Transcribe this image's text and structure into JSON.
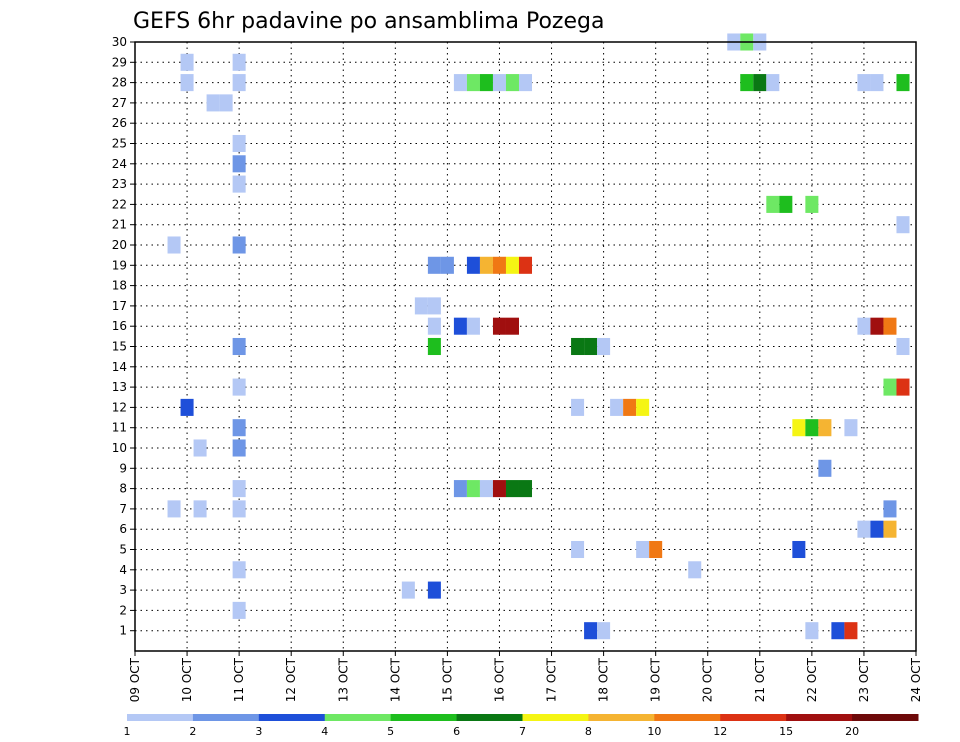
{
  "chart_data": {
    "type": "heatmap",
    "title": "GEFS 6hr padavine po ansamblima Pozega",
    "xlabel": "",
    "ylabel": "",
    "x_tick_labels": [
      "09 OCT",
      "10 OCT",
      "11 OCT",
      "12 OCT",
      "13 OCT",
      "14 OCT",
      "15 OCT",
      "16 OCT",
      "17 OCT",
      "18 OCT",
      "19 OCT",
      "20 OCT",
      "21 OCT",
      "22 OCT",
      "23 OCT",
      "24 OCT"
    ],
    "x_range_days": [
      0,
      15
    ],
    "y_tick_labels": [
      "1",
      "2",
      "3",
      "4",
      "5",
      "6",
      "7",
      "8",
      "9",
      "10",
      "11",
      "12",
      "13",
      "14",
      "15",
      "16",
      "17",
      "18",
      "19",
      "20",
      "21",
      "22",
      "23",
      "24",
      "25",
      "26",
      "27",
      "28",
      "29",
      "30"
    ],
    "y_range": [
      0,
      30
    ],
    "grid": true,
    "legend": {
      "placement": "bottom",
      "levels": [
        "1",
        "2",
        "3",
        "4",
        "5",
        "6",
        "7",
        "8",
        "10",
        "12",
        "15",
        "20"
      ],
      "colors": [
        "#b4c8f5",
        "#6e96e6",
        "#1e4fd9",
        "#6ee864",
        "#1ebe1e",
        "#0a7814",
        "#f5f514",
        "#f5b432",
        "#f07814",
        "#dc3214",
        "#a00f0f",
        "#6e0a0a"
      ]
    },
    "cell_width_days": 0.25,
    "cells": [
      {
        "m": 30,
        "t": 11.5,
        "c": 0
      },
      {
        "m": 30,
        "t": 11.75,
        "c": 3
      },
      {
        "m": 30,
        "t": 12.0,
        "c": 0
      },
      {
        "m": 29,
        "t": 1.0,
        "c": 0
      },
      {
        "m": 29,
        "t": 2.0,
        "c": 0
      },
      {
        "m": 28,
        "t": 1.0,
        "c": 0
      },
      {
        "m": 28,
        "t": 2.0,
        "c": 0
      },
      {
        "m": 28,
        "t": 6.25,
        "c": 0
      },
      {
        "m": 28,
        "t": 6.5,
        "c": 3
      },
      {
        "m": 28,
        "t": 6.75,
        "c": 4
      },
      {
        "m": 28,
        "t": 7.0,
        "c": 0
      },
      {
        "m": 28,
        "t": 7.25,
        "c": 3
      },
      {
        "m": 28,
        "t": 7.5,
        "c": 0
      },
      {
        "m": 28,
        "t": 11.75,
        "c": 4
      },
      {
        "m": 28,
        "t": 12.0,
        "c": 5
      },
      {
        "m": 28,
        "t": 12.25,
        "c": 0
      },
      {
        "m": 28,
        "t": 14.0,
        "c": 0
      },
      {
        "m": 28,
        "t": 14.25,
        "c": 0
      },
      {
        "m": 28,
        "t": 14.75,
        "c": 4
      },
      {
        "m": 27,
        "t": 1.5,
        "c": 0
      },
      {
        "m": 27,
        "t": 1.75,
        "c": 0
      },
      {
        "m": 25,
        "t": 2.0,
        "c": 0
      },
      {
        "m": 24,
        "t": 2.0,
        "c": 1
      },
      {
        "m": 23,
        "t": 2.0,
        "c": 0
      },
      {
        "m": 22,
        "t": 12.25,
        "c": 3
      },
      {
        "m": 22,
        "t": 12.5,
        "c": 4
      },
      {
        "m": 22,
        "t": 13.0,
        "c": 3
      },
      {
        "m": 21,
        "t": 14.75,
        "c": 0
      },
      {
        "m": 20,
        "t": 0.75,
        "c": 0
      },
      {
        "m": 20,
        "t": 2.0,
        "c": 1
      },
      {
        "m": 19,
        "t": 5.75,
        "c": 1
      },
      {
        "m": 19,
        "t": 6.0,
        "c": 1
      },
      {
        "m": 19,
        "t": 6.5,
        "c": 2
      },
      {
        "m": 19,
        "t": 6.75,
        "c": 7
      },
      {
        "m": 19,
        "t": 7.0,
        "c": 8
      },
      {
        "m": 19,
        "t": 7.25,
        "c": 6
      },
      {
        "m": 19,
        "t": 7.5,
        "c": 9
      },
      {
        "m": 17,
        "t": 5.5,
        "c": 0
      },
      {
        "m": 17,
        "t": 5.75,
        "c": 0
      },
      {
        "m": 16,
        "t": 5.75,
        "c": 0
      },
      {
        "m": 16,
        "t": 6.25,
        "c": 2
      },
      {
        "m": 16,
        "t": 6.5,
        "c": 0
      },
      {
        "m": 16,
        "t": 7.0,
        "c": 10
      },
      {
        "m": 16,
        "t": 7.25,
        "c": 10
      },
      {
        "m": 16,
        "t": 14.0,
        "c": 0
      },
      {
        "m": 16,
        "t": 14.25,
        "c": 10
      },
      {
        "m": 16,
        "t": 14.5,
        "c": 8
      },
      {
        "m": 15,
        "t": 2.0,
        "c": 1
      },
      {
        "m": 15,
        "t": 5.75,
        "c": 4
      },
      {
        "m": 15,
        "t": 8.5,
        "c": 5
      },
      {
        "m": 15,
        "t": 8.75,
        "c": 5
      },
      {
        "m": 15,
        "t": 9.0,
        "c": 0
      },
      {
        "m": 15,
        "t": 14.75,
        "c": 0
      },
      {
        "m": 13,
        "t": 2.0,
        "c": 0
      },
      {
        "m": 13,
        "t": 14.5,
        "c": 3
      },
      {
        "m": 13,
        "t": 14.75,
        "c": 9
      },
      {
        "m": 12,
        "t": 1.0,
        "c": 2
      },
      {
        "m": 12,
        "t": 8.5,
        "c": 0
      },
      {
        "m": 12,
        "t": 9.25,
        "c": 0
      },
      {
        "m": 12,
        "t": 9.5,
        "c": 8
      },
      {
        "m": 12,
        "t": 9.75,
        "c": 6
      },
      {
        "m": 11,
        "t": 2.0,
        "c": 1
      },
      {
        "m": 11,
        "t": 12.75,
        "c": 6
      },
      {
        "m": 11,
        "t": 13.0,
        "c": 4
      },
      {
        "m": 11,
        "t": 13.25,
        "c": 7
      },
      {
        "m": 11,
        "t": 13.75,
        "c": 0
      },
      {
        "m": 10,
        "t": 2.0,
        "c": 1
      },
      {
        "m": 10,
        "t": 1.25,
        "c": 0
      },
      {
        "m": 9,
        "t": 13.25,
        "c": 1
      },
      {
        "m": 8,
        "t": 2.0,
        "c": 0
      },
      {
        "m": 8,
        "t": 6.25,
        "c": 1
      },
      {
        "m": 8,
        "t": 6.5,
        "c": 3
      },
      {
        "m": 8,
        "t": 6.75,
        "c": 0
      },
      {
        "m": 8,
        "t": 7.0,
        "c": 10
      },
      {
        "m": 8,
        "t": 7.25,
        "c": 5
      },
      {
        "m": 8,
        "t": 7.5,
        "c": 5
      },
      {
        "m": 7,
        "t": 0.75,
        "c": 0
      },
      {
        "m": 7,
        "t": 1.25,
        "c": 0
      },
      {
        "m": 7,
        "t": 2.0,
        "c": 0
      },
      {
        "m": 7,
        "t": 14.5,
        "c": 1
      },
      {
        "m": 6,
        "t": 14.0,
        "c": 0
      },
      {
        "m": 6,
        "t": 14.25,
        "c": 2
      },
      {
        "m": 6,
        "t": 14.5,
        "c": 7
      },
      {
        "m": 5,
        "t": 8.5,
        "c": 0
      },
      {
        "m": 5,
        "t": 9.75,
        "c": 0
      },
      {
        "m": 5,
        "t": 10.0,
        "c": 8
      },
      {
        "m": 5,
        "t": 12.75,
        "c": 2
      },
      {
        "m": 4,
        "t": 2.0,
        "c": 0
      },
      {
        "m": 4,
        "t": 10.75,
        "c": 0
      },
      {
        "m": 3,
        "t": 5.25,
        "c": 0
      },
      {
        "m": 3,
        "t": 5.75,
        "c": 2
      },
      {
        "m": 2,
        "t": 2.0,
        "c": 0
      },
      {
        "m": 1,
        "t": 8.75,
        "c": 2
      },
      {
        "m": 1,
        "t": 9.0,
        "c": 0
      },
      {
        "m": 1,
        "t": 13.0,
        "c": 0
      },
      {
        "m": 1,
        "t": 13.5,
        "c": 2
      },
      {
        "m": 1,
        "t": 13.75,
        "c": 9
      }
    ]
  }
}
